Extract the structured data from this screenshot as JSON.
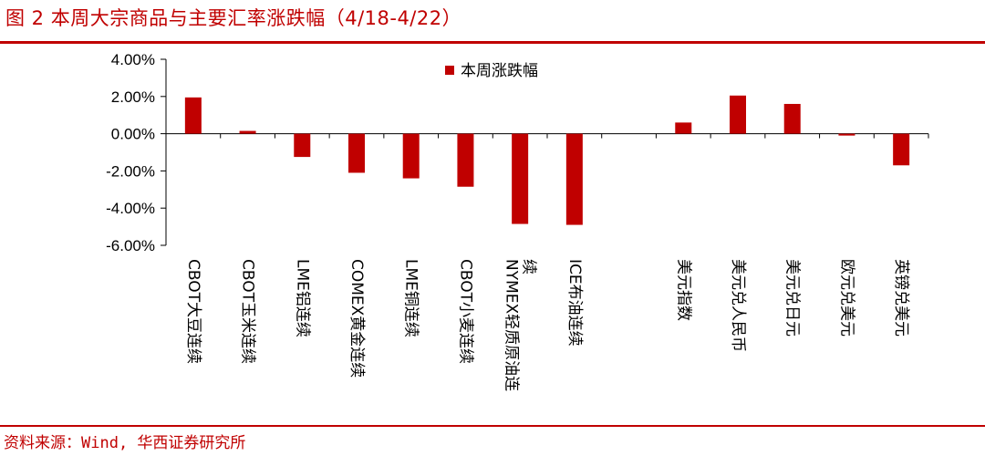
{
  "header": {
    "title": "图 2 本周大宗商品与主要汇率涨跌幅（4/18-4/22）"
  },
  "footer": {
    "source": "资料来源：Wind, 华西证券研究所"
  },
  "colors": {
    "accent": "#c00000",
    "bar": "#c00000"
  },
  "chart_data": {
    "type": "bar",
    "title": "",
    "xlabel": "",
    "ylabel": "",
    "ylim": [
      -6,
      4
    ],
    "yticks": [
      "4.00%",
      "2.00%",
      "0.00%",
      "-2.00%",
      "-4.00%",
      "-6.00%"
    ],
    "grid": false,
    "legend_position": "top-center",
    "categories": [
      "CBOT大豆连续",
      "CBOT玉米连续",
      "LME铝连续",
      "COMEX黄金连续",
      "LME铜连续",
      "CBOT小麦连续",
      "NYMEX轻质原油连续",
      "ICE布油连续",
      "",
      "美元指数",
      "美元兑人民币",
      "美元兑日元",
      "欧元兑美元",
      "英镑兑美元"
    ],
    "series": [
      {
        "name": "本周涨跌幅",
        "values": [
          1.95,
          0.15,
          -1.25,
          -2.1,
          -2.4,
          -2.85,
          -4.85,
          -4.9,
          null,
          0.6,
          2.05,
          1.6,
          -0.1,
          -1.7
        ]
      }
    ]
  }
}
